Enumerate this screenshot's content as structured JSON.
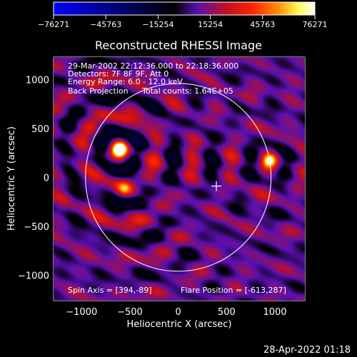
{
  "colorbar": {
    "ticks": [
      "-76271",
      "-45763",
      "-15254",
      "15254",
      "45763",
      "76271"
    ],
    "min": -76271,
    "max": 76271,
    "colors": [
      "#0000ff",
      "#000000",
      "#5a10b0",
      "#c01020",
      "#ff2000",
      "#ff9000",
      "#ffff60",
      "#ffffff"
    ]
  },
  "title": "Reconstructed RHESSI Image",
  "info_lines": [
    "29-Mar-2002 22:12:36.000 to 22:18:36.000",
    "Detectors: 7F 8F 9F, Att 0",
    "Energy Range: 6.0 - 12.0 keV"
  ],
  "method_label": "Back Projection",
  "counts_label": "Total counts: 1.64E+05",
  "spin_axis_label": "Spin Axis = [394,-89]",
  "flare_position_label": "Flare Position = [-613,287]",
  "footer_timestamp": "28-Apr-2022 01:18",
  "chart_data": {
    "type": "heatmap",
    "title": "Reconstructed RHESSI Image",
    "xlabel": "Heliocentric X (arcsec)",
    "ylabel": "Heliocentric Y (arcsec)",
    "xlim": [
      -1290,
      1310
    ],
    "ylim": [
      -1260,
      1230
    ],
    "x_ticks": [
      -1000,
      -500,
      0,
      500,
      1000
    ],
    "y_ticks": [
      1000,
      500,
      0,
      -500,
      -1000
    ],
    "x_tick_labels": [
      "−1000",
      "−500",
      "0",
      "500",
      "1000"
    ],
    "y_tick_labels": [
      "1000",
      "500",
      "0",
      "−500",
      "−1000"
    ],
    "value_range": [
      -76271,
      76271
    ],
    "solar_disk": {
      "center": [
        0,
        0
      ],
      "radius_arcsec": 960
    },
    "spin_axis": [
      394,
      -89
    ],
    "flare_position": [
      -613,
      287
    ],
    "sources": [
      {
        "x": -613,
        "y": 287,
        "peak": 76271
      },
      {
        "x": 940,
        "y": 170,
        "peak": 60000
      },
      {
        "x": -560,
        "y": -120,
        "peak": 30000
      }
    ],
    "grid": false
  }
}
